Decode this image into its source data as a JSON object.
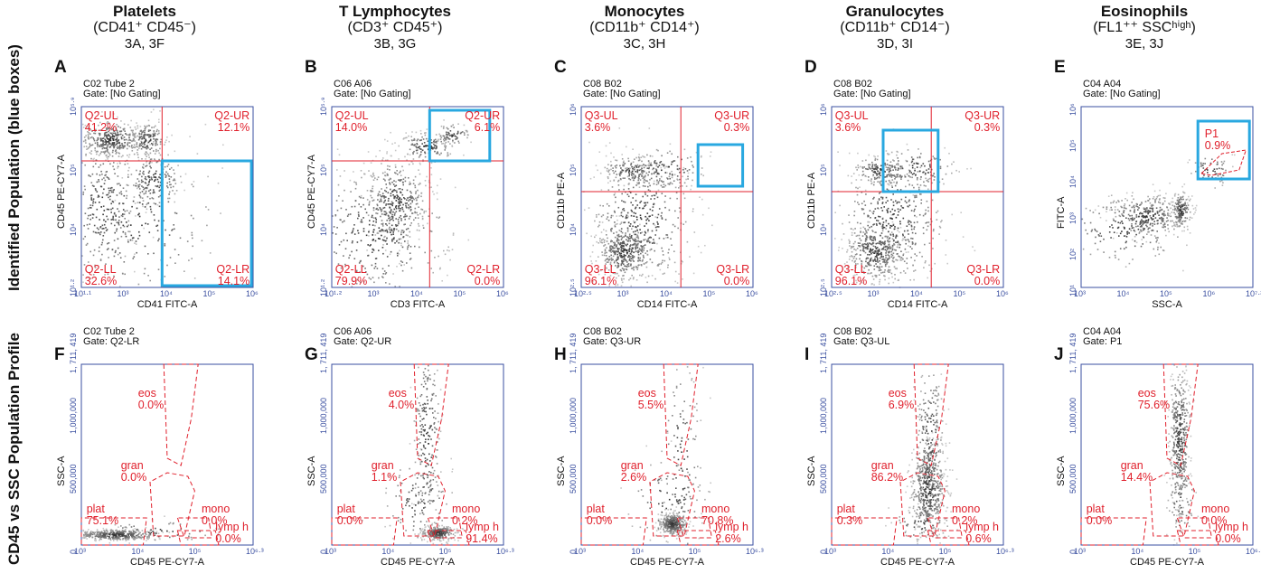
{
  "columns": [
    {
      "title": "Platelets",
      "marker": "(CD41⁺ CD45⁻)",
      "figs": "3A, 3F"
    },
    {
      "title": "T Lymphocytes",
      "marker": "(CD3⁺ CD45⁺)",
      "figs": "3B, 3G"
    },
    {
      "title": "Monocytes",
      "marker": "(CD11b⁺ CD14⁺)",
      "figs": "3C, 3H"
    },
    {
      "title": "Granulocytes",
      "marker": "(CD11b⁺ CD14⁻)",
      "figs": "3D, 3I"
    },
    {
      "title": "Eosinophils",
      "marker": "(FL1⁺⁺ SSCʰⁱᵍʰ)",
      "figs": "3E, 3J"
    }
  ],
  "row_labels": [
    "Identified Population (blue boxes)",
    "CD45 vs SSC Population Profile"
  ],
  "colors": {
    "gate": "#e0202c",
    "box": "#29a8e0",
    "axis": "#3a4fa0",
    "density": "#222222"
  },
  "chart_data": [
    {
      "type": "scatter",
      "letter": "A",
      "tube": "C02 Tube 2",
      "gate": "Gate: [No Gating]",
      "xlabel": "CD41 FITC-A",
      "ylabel": "CD45 PE-CY7-A",
      "log": true,
      "xticks": [
        "10^1.1",
        "10^3",
        "10^4",
        "10^5",
        "10^6"
      ],
      "yticks": [
        "10^1.2",
        "10^4",
        "10^5",
        "10^5.9"
      ],
      "regions": [
        {
          "name": "Q2-UL",
          "pct": "41.2%"
        },
        {
          "name": "Q2-UR",
          "pct": "12.1%"
        },
        {
          "name": "Q2-LL",
          "pct": "32.6%"
        },
        {
          "name": "Q2-LR",
          "pct": "14.1%"
        }
      ],
      "highlight": "Q2-LR"
    },
    {
      "type": "scatter",
      "letter": "B",
      "tube": "C06 A06",
      "gate": "Gate: [No Gating]",
      "xlabel": "CD3 FITC-A",
      "ylabel": "CD45 PE-CY7-A",
      "log": true,
      "xticks": [
        "10^1.2",
        "10^3",
        "10^4",
        "10^5",
        "10^6"
      ],
      "yticks": [
        "10^1.2",
        "10^4",
        "10^5",
        "10^5.9"
      ],
      "regions": [
        {
          "name": "Q2-UL",
          "pct": "14.0%"
        },
        {
          "name": "Q2-UR",
          "pct": "6.1%"
        },
        {
          "name": "Q2-LL",
          "pct": "79.9%"
        },
        {
          "name": "Q2-LR",
          "pct": "0.0%"
        }
      ],
      "highlight": "Q2-UR"
    },
    {
      "type": "scatter",
      "letter": "C",
      "tube": "C08 B02",
      "gate": "Gate: [No Gating]",
      "xlabel": "CD14 FITC-A",
      "ylabel": "CD11b PE-A",
      "log": true,
      "xticks": [
        "10^2.5",
        "10^3",
        "10^4",
        "10^5",
        "10^6"
      ],
      "yticks": [
        "10^2.5",
        "10^4",
        "10^5",
        "10^6"
      ],
      "regions": [
        {
          "name": "Q3-UL",
          "pct": "3.6%"
        },
        {
          "name": "Q3-UR",
          "pct": "0.3%"
        },
        {
          "name": "Q3-LL",
          "pct": "96.1%"
        },
        {
          "name": "Q3-LR",
          "pct": "0.0%"
        }
      ],
      "highlight": "monocyte box"
    },
    {
      "type": "scatter",
      "letter": "D",
      "tube": "C08 B02",
      "gate": "Gate: [No Gating]",
      "xlabel": "CD14 FITC-A",
      "ylabel": "CD11b PE-A",
      "log": true,
      "xticks": [
        "10^2.5",
        "10^3",
        "10^4",
        "10^5",
        "10^6"
      ],
      "yticks": [
        "10^2.5",
        "10^4",
        "10^5",
        "10^6"
      ],
      "regions": [
        {
          "name": "Q3-UL",
          "pct": "3.6%"
        },
        {
          "name": "Q3-UR",
          "pct": "0.3%"
        },
        {
          "name": "Q3-LL",
          "pct": "96.1%"
        },
        {
          "name": "Q3-LR",
          "pct": "0.0%"
        }
      ],
      "highlight": "granulocyte box"
    },
    {
      "type": "scatter",
      "letter": "E",
      "tube": "C04 A04",
      "gate": "Gate: [No Gating]",
      "xlabel": "SSC-A",
      "ylabel": "FITC-A",
      "log": true,
      "xticks": [
        "10^3",
        "10^4",
        "10^5",
        "10^6",
        "10^7.2"
      ],
      "yticks": [
        "10^1",
        "10^2",
        "10^3",
        "10^4",
        "10^5",
        "10^6"
      ],
      "regions": [
        {
          "name": "P1",
          "pct": "0.9%"
        }
      ],
      "highlight": "P1"
    },
    {
      "type": "scatter",
      "letter": "F",
      "tube": "C02 Tube 2",
      "gate": "Gate: Q2-LR",
      "xlabel": "CD45 PE-CY7-A",
      "ylabel": "SSC-A",
      "xticks": [
        "10^3",
        "10^4",
        "10^5",
        "10^6.3"
      ],
      "yticks": [
        "0",
        "500,000",
        "1,000,000",
        "1, 711, 419"
      ],
      "regions": [
        {
          "name": "eos",
          "pct": "0.0%"
        },
        {
          "name": "gran",
          "pct": "0.0%"
        },
        {
          "name": "plat",
          "pct": "75.1%"
        },
        {
          "name": "mono",
          "pct": "0.0%"
        },
        {
          "name": "lymp h",
          "pct": "0.0%"
        }
      ]
    },
    {
      "type": "scatter",
      "letter": "G",
      "tube": "C06 A06",
      "gate": "Gate: Q2-UR",
      "xlabel": "CD45 PE-CY7-A",
      "ylabel": "SSC-A",
      "xticks": [
        "10^3",
        "10^4",
        "10^5",
        "10^6.3"
      ],
      "yticks": [
        "0",
        "500,000",
        "1,000,000",
        "1, 711, 419"
      ],
      "regions": [
        {
          "name": "eos",
          "pct": "4.0%"
        },
        {
          "name": "gran",
          "pct": "1.1%"
        },
        {
          "name": "plat",
          "pct": "0.0%"
        },
        {
          "name": "mono",
          "pct": "0.2%"
        },
        {
          "name": "lymp h",
          "pct": "91.4%"
        }
      ]
    },
    {
      "type": "scatter",
      "letter": "H",
      "tube": "C08 B02",
      "gate": "Gate: Q3-UR",
      "xlabel": "CD45 PE-CY7-A",
      "ylabel": "SSC-A",
      "xticks": [
        "10^3",
        "10^4",
        "10^5",
        "10^6.3"
      ],
      "yticks": [
        "0",
        "500,000",
        "1,000,000",
        "1, 711, 419"
      ],
      "regions": [
        {
          "name": "eos",
          "pct": "5.5%"
        },
        {
          "name": "gran",
          "pct": "2.6%"
        },
        {
          "name": "plat",
          "pct": "0.0%"
        },
        {
          "name": "mono",
          "pct": "70.8%"
        },
        {
          "name": "lymp h",
          "pct": "2.6%"
        }
      ]
    },
    {
      "type": "scatter",
      "letter": "I",
      "tube": "C08 B02",
      "gate": "Gate: Q3-UL",
      "xlabel": "CD45 PE-CY7-A",
      "ylabel": "SSC-A",
      "xticks": [
        "10^3",
        "10^4",
        "10^5",
        "10^6.3"
      ],
      "yticks": [
        "0",
        "500,000",
        "1,000,000",
        "1, 711, 419"
      ],
      "regions": [
        {
          "name": "eos",
          "pct": "6.9%"
        },
        {
          "name": "gran",
          "pct": "86.2%"
        },
        {
          "name": "plat",
          "pct": "0.3%"
        },
        {
          "name": "mono",
          "pct": "0.2%"
        },
        {
          "name": "lymp h",
          "pct": "0.6%"
        }
      ]
    },
    {
      "type": "scatter",
      "letter": "J",
      "tube": "C04 A04",
      "gate": "Gate: P1",
      "xlabel": "CD45 PE-CY7-A",
      "ylabel": "SSC-A",
      "xticks": [
        "10^3",
        "10^4",
        "10^5",
        "10^6.3"
      ],
      "yticks": [
        "0",
        "500,000",
        "1,000,000",
        "1, 711, 419"
      ],
      "regions": [
        {
          "name": "eos",
          "pct": "75.6%"
        },
        {
          "name": "gran",
          "pct": "14.4%"
        },
        {
          "name": "plat",
          "pct": "0.0%"
        },
        {
          "name": "mono",
          "pct": "0.0%"
        },
        {
          "name": "lymp h",
          "pct": "0.0%"
        }
      ]
    }
  ]
}
